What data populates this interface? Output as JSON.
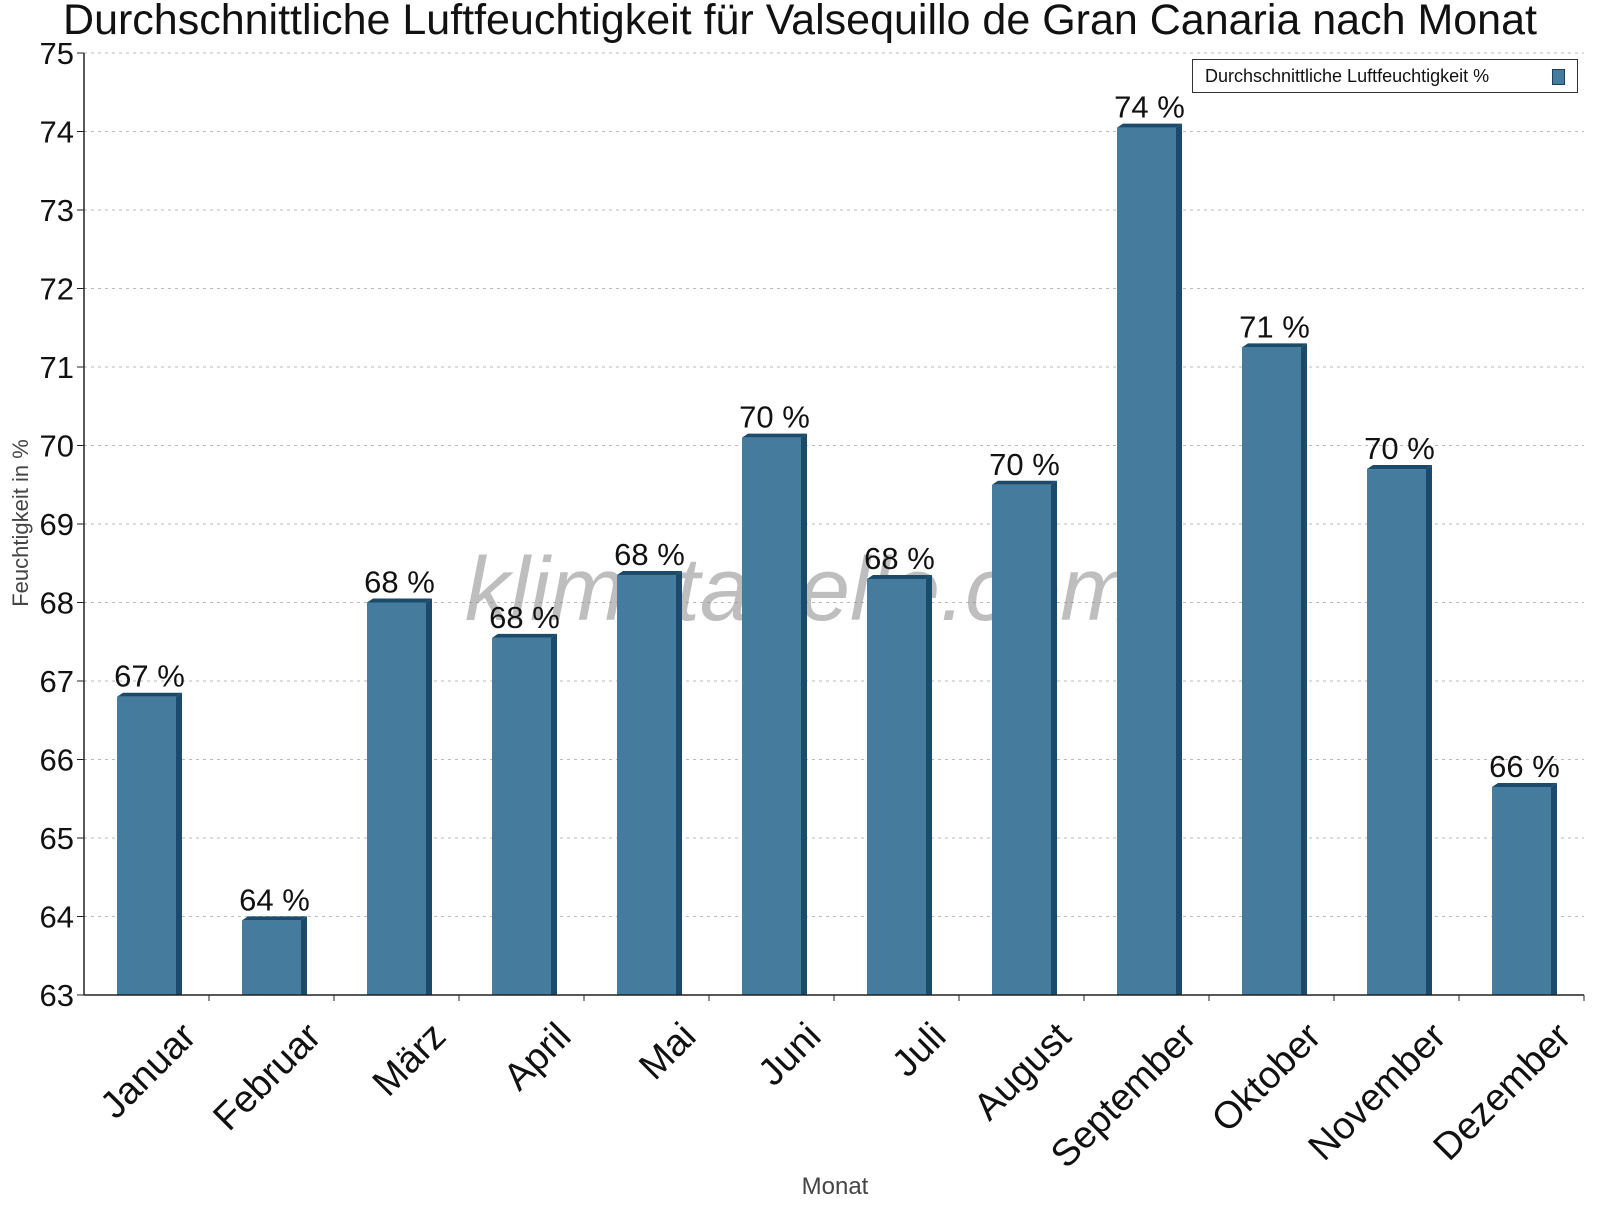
{
  "chart_data": {
    "type": "bar",
    "title": "Durchschnittliche Luftfeuchtigkeit für Valsequillo de Gran Canaria nach Monat",
    "xlabel": "Monat",
    "ylabel": "Feuchtigkeit in %",
    "ylim": [
      63,
      75
    ],
    "yticks": [
      63,
      64,
      65,
      66,
      67,
      68,
      69,
      70,
      71,
      72,
      73,
      74,
      75
    ],
    "grid": true,
    "legend_position": "top-right",
    "categories": [
      "Januar",
      "Februar",
      "März",
      "April",
      "Mai",
      "Juni",
      "Juli",
      "August",
      "September",
      "Oktober",
      "November",
      "Dezember"
    ],
    "series": [
      {
        "name": "Durchschnittliche Luftfeuchtigkeit %",
        "values": [
          66.8,
          63.95,
          68.0,
          67.55,
          68.35,
          70.1,
          68.3,
          69.5,
          74.05,
          71.25,
          69.7,
          65.65
        ],
        "labels": [
          "67 %",
          "64 %",
          "68 %",
          "68 %",
          "68 %",
          "70 %",
          "68 %",
          "70 %",
          "74 %",
          "71 %",
          "70 %",
          "66 %"
        ]
      }
    ],
    "colors": {
      "bar": "#457b9d",
      "bar_side": "#1b4a6b",
      "bar_top": "#1b4a6b",
      "grid": "#bbbbbb"
    }
  },
  "watermark": "klimatabelle.com"
}
